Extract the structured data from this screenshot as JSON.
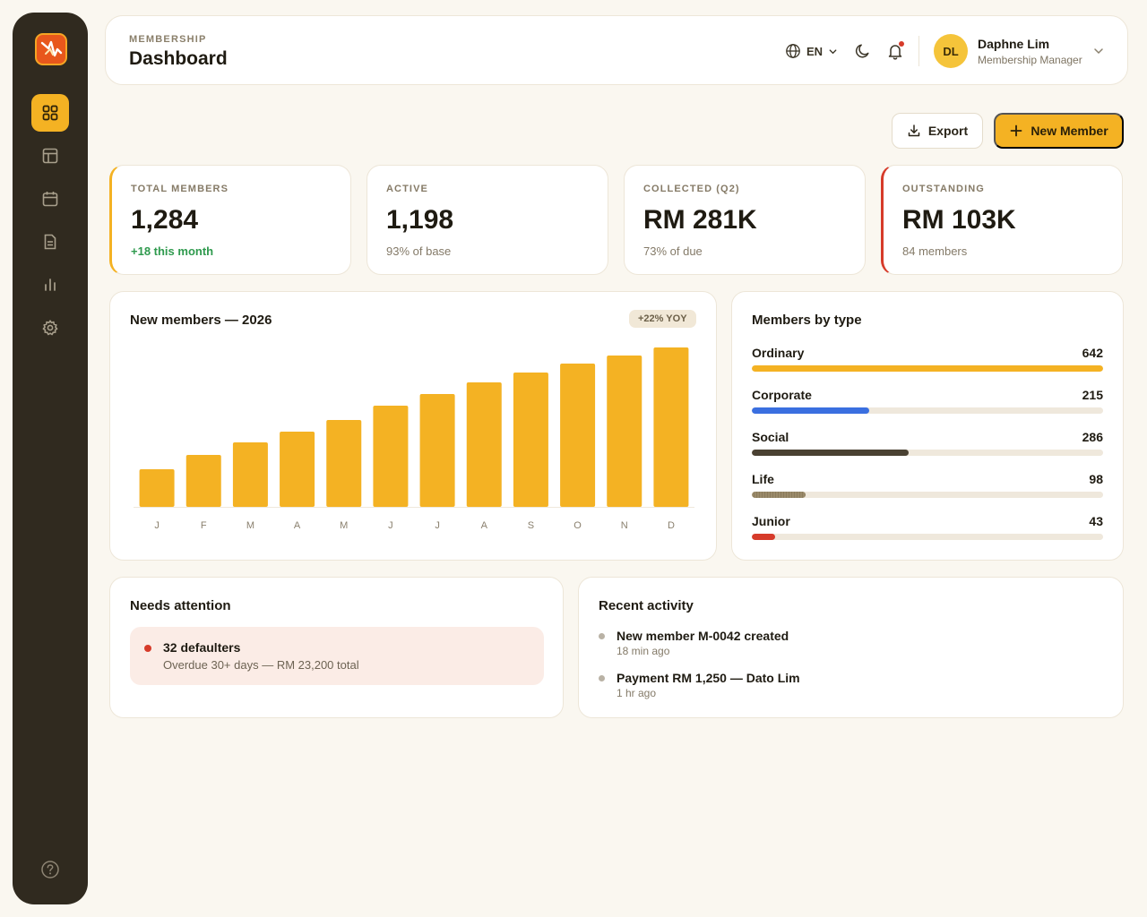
{
  "colors": {
    "accent": "#f4b223",
    "sidebar": "#302a1f",
    "background": "#faf7f0",
    "danger": "#d63b2a",
    "positive": "#2f9a4e"
  },
  "sidebar": {
    "items": [
      {
        "icon": "dashboard-grid-icon",
        "active": true
      },
      {
        "icon": "table-icon",
        "active": false
      },
      {
        "icon": "calendar-icon",
        "active": false
      },
      {
        "icon": "document-icon",
        "active": false
      },
      {
        "icon": "bar-chart-icon",
        "active": false
      },
      {
        "icon": "gear-icon",
        "active": false
      }
    ],
    "help_icon": "help-circle-icon"
  },
  "header": {
    "eyebrow": "MEMBERSHIP",
    "title": "Dashboard",
    "language": "EN",
    "user": {
      "initials": "DL",
      "name": "Daphne Lim",
      "role": "Membership Manager"
    }
  },
  "actions": {
    "export_label": "Export",
    "new_member_label": "New Member"
  },
  "kpis": [
    {
      "label": "TOTAL MEMBERS",
      "value": "1,284",
      "sub": "+18 this month"
    },
    {
      "label": "ACTIVE",
      "value": "1,198",
      "sub": "93% of base"
    },
    {
      "label": "COLLECTED (Q2)",
      "value": "RM 281K",
      "sub": "73% of due"
    },
    {
      "label": "OUTSTANDING",
      "value": "RM 103K",
      "sub": "84 members"
    }
  ],
  "new_members_chart": {
    "title": "New members — 2026",
    "badge": "+22% YOY"
  },
  "chart_data": {
    "type": "bar",
    "title": "New members — 2026",
    "categories": [
      "J",
      "F",
      "M",
      "A",
      "M",
      "J",
      "J",
      "A",
      "S",
      "O",
      "N",
      "D"
    ],
    "values": [
      42,
      58,
      72,
      84,
      97,
      113,
      126,
      139,
      150,
      160,
      169,
      178
    ],
    "ylim": [
      0,
      180
    ],
    "color": "#f4b223",
    "grid": false
  },
  "members_by_type": {
    "title": "Members by type",
    "items": [
      {
        "name": "Ordinary",
        "count": "642",
        "value": 642,
        "color": "#f4b223"
      },
      {
        "name": "Corporate",
        "count": "215",
        "value": 215,
        "color": "#3a6fe0"
      },
      {
        "name": "Social",
        "count": "286",
        "value": 286,
        "color": "#4a4132"
      },
      {
        "name": "Life",
        "count": "98",
        "value": 98,
        "color": "#9a8a6a"
      },
      {
        "name": "Junior",
        "count": "43",
        "value": 43,
        "color": "#d63b2a"
      }
    ]
  },
  "needs_attention": {
    "title": "Needs attention",
    "alert_title": "32 defaulters",
    "alert_sub": "Overdue 30+ days — RM 23,200 total"
  },
  "recent_activity": {
    "title": "Recent activity",
    "items": [
      {
        "title": "New member M-0042 created",
        "time": "18 min ago"
      },
      {
        "title": "Payment RM 1,250 — Dato Lim",
        "time": "1 hr ago"
      }
    ]
  }
}
